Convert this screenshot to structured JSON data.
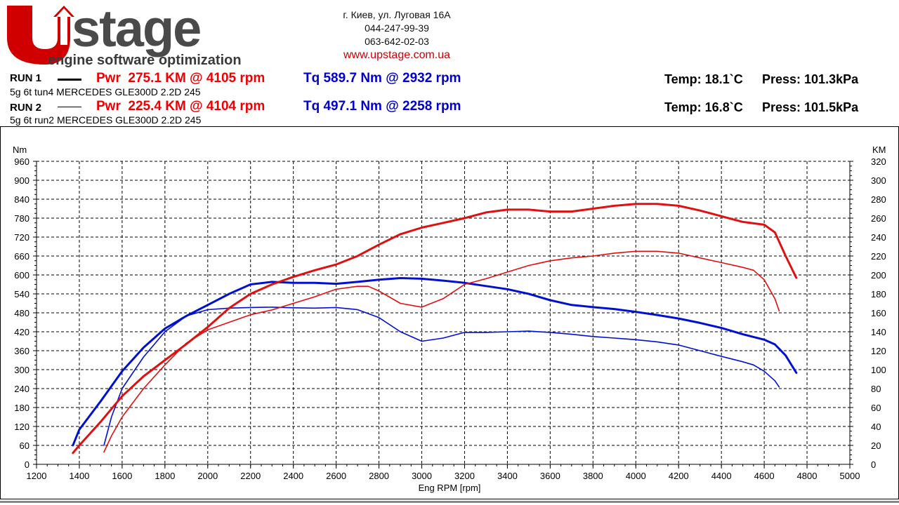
{
  "logo": {
    "brand": "Upstage",
    "tagline": "engine software optimization"
  },
  "contact": {
    "address": "г. Киев, ул. Луговая 16А",
    "phone1": "044-247-99-39",
    "phone2": "063-642-02-03",
    "website": "www.upstage.com.ua"
  },
  "runs": [
    {
      "label": "RUN 1",
      "power": "Pwr  275.1 KM @ 4105 rpm",
      "torque": "Tq 589.7 Nm @ 2932 rpm",
      "description": "5g 6t tun4 MERCEDES GLE300D 2.2D 245",
      "temp": "Temp: 18.1`C",
      "press": "Press: 101.3kPa"
    },
    {
      "label": "RUN 2",
      "power": "Pwr  225.4 KM @ 4104 rpm",
      "torque": "Tq 497.1 Nm @ 2258 rpm",
      "description": "5g 6t run2 MERCEDES GLE300D 2.2D 245",
      "temp": "Temp: 16.8`C",
      "press": "Press: 101.5kPa"
    }
  ],
  "colors": {
    "power": "#e01010",
    "torque": "#0010d0"
  },
  "chart_data": {
    "type": "line",
    "xlabel": "Eng RPM [rpm]",
    "ylabel": "Nm",
    "y2label": "KM",
    "xlim": [
      1200,
      5000
    ],
    "ylim": [
      0,
      960
    ],
    "y2lim": [
      0,
      320
    ],
    "xticks": [
      1200,
      1400,
      1600,
      1800,
      2000,
      2200,
      2400,
      2600,
      2800,
      3000,
      3200,
      3400,
      3600,
      3800,
      4000,
      4200,
      4400,
      4600,
      4800,
      5000
    ],
    "yticks": [
      0,
      60,
      120,
      180,
      240,
      300,
      360,
      420,
      480,
      540,
      600,
      660,
      720,
      780,
      840,
      900,
      960
    ],
    "y2ticks": [
      0,
      20,
      40,
      60,
      80,
      100,
      120,
      140,
      160,
      180,
      200,
      220,
      240,
      260,
      280,
      300,
      320
    ],
    "grid": true,
    "series": [
      {
        "run": "RUN 1",
        "quantity": "torque",
        "axis": "left",
        "color": "#0010d0",
        "weight": "thick",
        "x": [
          1370,
          1400,
          1500,
          1600,
          1700,
          1800,
          1900,
          2000,
          2100,
          2200,
          2300,
          2400,
          2500,
          2600,
          2700,
          2800,
          2900,
          3000,
          3100,
          3200,
          3300,
          3400,
          3500,
          3600,
          3700,
          3800,
          3900,
          4000,
          4100,
          4200,
          4300,
          4400,
          4500,
          4600,
          4650,
          4700,
          4750
        ],
        "y": [
          60,
          110,
          200,
          295,
          370,
          430,
          470,
          505,
          540,
          570,
          578,
          575,
          575,
          572,
          578,
          585,
          590,
          588,
          582,
          575,
          565,
          555,
          540,
          520,
          505,
          498,
          492,
          483,
          473,
          462,
          448,
          432,
          412,
          395,
          380,
          345,
          290
        ]
      },
      {
        "run": "RUN 2",
        "quantity": "torque",
        "axis": "left",
        "color": "#0010d0",
        "weight": "thin",
        "x": [
          1515,
          1550,
          1600,
          1700,
          1800,
          1900,
          2000,
          2100,
          2200,
          2300,
          2400,
          2500,
          2600,
          2700,
          2800,
          2900,
          3000,
          3100,
          3200,
          3300,
          3400,
          3500,
          3600,
          3700,
          3800,
          3900,
          4000,
          4100,
          4200,
          4300,
          4400,
          4500,
          4550,
          4600,
          4650,
          4670
        ],
        "y": [
          60,
          150,
          240,
          340,
          420,
          470,
          490,
          495,
          497,
          498,
          496,
          495,
          497,
          490,
          465,
          420,
          390,
          400,
          418,
          418,
          420,
          422,
          418,
          412,
          405,
          400,
          395,
          388,
          378,
          360,
          342,
          325,
          315,
          295,
          265,
          245
        ]
      },
      {
        "run": "RUN 1",
        "quantity": "power",
        "axis": "right",
        "color": "#e01010",
        "weight": "thick",
        "x": [
          1370,
          1400,
          1500,
          1600,
          1700,
          1800,
          1900,
          2000,
          2100,
          2200,
          2300,
          2400,
          2500,
          2600,
          2700,
          2800,
          2900,
          3000,
          3100,
          3200,
          3300,
          3400,
          3500,
          3600,
          3700,
          3800,
          3900,
          4000,
          4100,
          4200,
          4300,
          4400,
          4500,
          4600,
          4650,
          4700,
          4750
        ],
        "y": [
          12,
          20,
          45,
          72,
          93,
          110,
          127,
          145,
          165,
          180,
          190,
          198,
          205,
          211,
          220,
          232,
          243,
          250,
          255,
          260,
          266,
          269,
          269,
          267,
          267,
          270,
          273,
          275,
          275,
          273,
          268,
          262,
          256,
          253,
          245,
          220,
          197
        ]
      },
      {
        "run": "RUN 2",
        "quantity": "power",
        "axis": "right",
        "color": "#e01010",
        "weight": "thin",
        "x": [
          1515,
          1550,
          1600,
          1700,
          1800,
          1900,
          2000,
          2100,
          2200,
          2300,
          2400,
          2500,
          2600,
          2700,
          2750,
          2800,
          2900,
          3000,
          3100,
          3200,
          3300,
          3400,
          3500,
          3600,
          3700,
          3800,
          3900,
          4000,
          4100,
          4200,
          4300,
          4400,
          4500,
          4550,
          4600,
          4650,
          4670
        ],
        "y": [
          13,
          30,
          50,
          80,
          105,
          128,
          142,
          150,
          158,
          163,
          170,
          177,
          185,
          188,
          188,
          183,
          170,
          166,
          175,
          190,
          196,
          203,
          210,
          215,
          218,
          220,
          223,
          225,
          225,
          223,
          218,
          213,
          208,
          205,
          195,
          175,
          162
        ]
      }
    ]
  }
}
